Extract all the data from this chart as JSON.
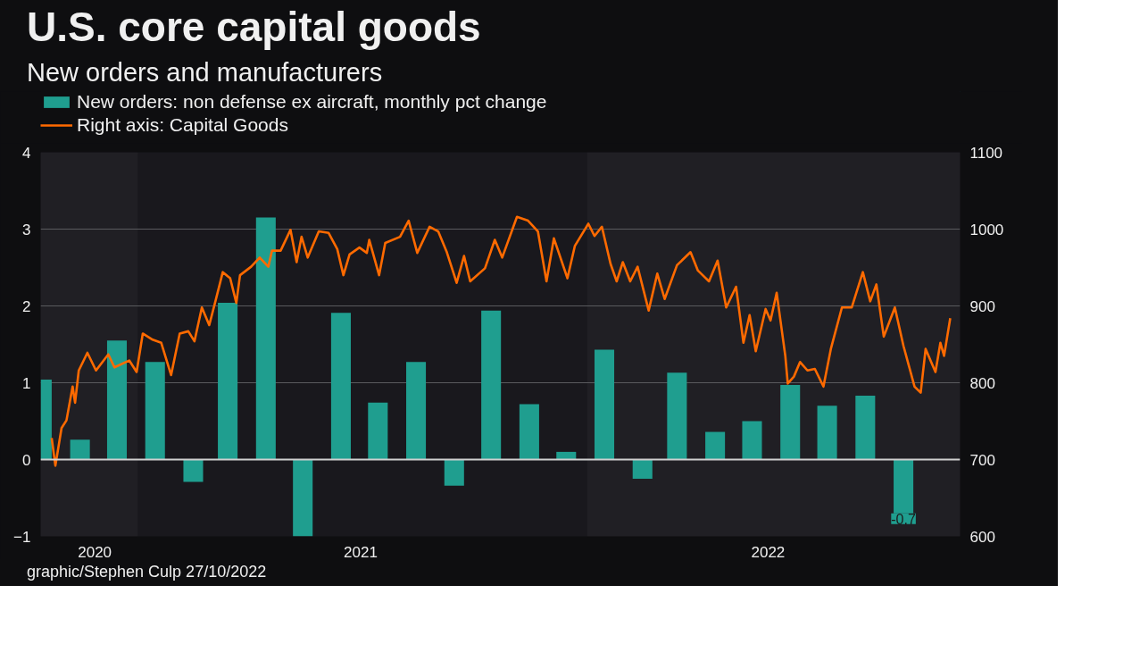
{
  "chart_data": {
    "type": "bar",
    "title": "U.S. core capital goods",
    "subtitle": "New orders and manufacturers",
    "x": [
      "2020-10-15",
      "2020-11-15",
      "2020-12-15",
      "2021-01-15",
      "2021-02-15",
      "2021-03-15",
      "2021-04-15",
      "2021-05-15",
      "2021-06-15",
      "2021-07-15",
      "2021-08-15",
      "2021-09-15",
      "2021-10-15",
      "2021-11-15",
      "2021-12-15",
      "2022-01-15",
      "2022-02-15",
      "2022-03-15",
      "2022-04-15",
      "2022-05-15",
      "2022-06-15",
      "2022-07-15",
      "2022-08-15",
      "2022-09-15"
    ],
    "series": [
      {
        "name": "New orders: non defense ex aircraft, monthly pct change",
        "color": "#1f9e8f",
        "values": [
          1.04,
          0.26,
          1.55,
          1.27,
          -0.29,
          2.04,
          3.15,
          -1.0,
          1.91,
          0.74,
          1.27,
          -0.34,
          1.94,
          0.72,
          0.1,
          1.43,
          -0.25,
          1.13,
          0.36,
          0.5,
          0.97,
          0.7,
          0.83,
          -0.7
        ],
        "value_labels": [
          null,
          null,
          null,
          null,
          null,
          null,
          null,
          null,
          null,
          null,
          null,
          null,
          null,
          null,
          null,
          null,
          null,
          null,
          null,
          null,
          null,
          null,
          null,
          "-0.7"
        ]
      },
      {
        "name": "Right axis: Capital Goods",
        "type": "line",
        "axis": "y2",
        "color": "#ff6a00",
        "x": [
          "2020-10-23",
          "2020-10-26",
          "2020-10-31",
          "2020-11-04",
          "2020-11-09",
          "2020-11-11",
          "2020-11-14",
          "2020-11-21",
          "2020-11-28",
          "2020-12-08",
          "2020-12-13",
          "2020-12-25",
          "2020-12-31",
          "2021-01-05",
          "2021-01-13",
          "2021-01-20",
          "2021-01-28",
          "2021-02-04",
          "2021-02-11",
          "2021-02-16",
          "2021-02-22",
          "2021-02-28",
          "2021-03-05",
          "2021-03-11",
          "2021-03-17",
          "2021-03-22",
          "2021-03-25",
          "2021-04-03",
          "2021-04-10",
          "2021-04-17",
          "2021-04-20",
          "2021-04-27",
          "2021-05-05",
          "2021-05-10",
          "2021-05-14",
          "2021-05-19",
          "2021-05-28",
          "2021-06-05",
          "2021-06-12",
          "2021-06-17",
          "2021-06-22",
          "2021-06-30",
          "2021-07-06",
          "2021-07-08",
          "2021-07-16",
          "2021-07-21",
          "2021-08-02",
          "2021-08-09",
          "2021-08-16",
          "2021-08-26",
          "2021-09-02",
          "2021-09-09",
          "2021-09-17",
          "2021-09-23",
          "2021-09-28",
          "2021-10-10",
          "2021-10-18",
          "2021-10-24",
          "2021-11-05",
          "2021-11-14",
          "2021-11-22",
          "2021-11-29",
          "2021-12-05",
          "2021-12-16",
          "2021-12-22",
          "2022-01-02",
          "2022-01-07",
          "2022-01-13",
          "2022-01-20",
          "2022-01-25",
          "2022-01-30",
          "2022-02-05",
          "2022-02-11",
          "2022-02-20",
          "2022-02-27",
          "2022-03-05",
          "2022-03-15",
          "2022-03-26",
          "2022-04-01",
          "2022-04-10",
          "2022-04-17",
          "2022-04-24",
          "2022-05-02",
          "2022-05-08",
          "2022-05-13",
          "2022-05-18",
          "2022-05-26",
          "2022-05-30",
          "2022-06-04",
          "2022-06-11",
          "2022-06-13",
          "2022-06-18",
          "2022-06-23",
          "2022-06-29",
          "2022-07-05",
          "2022-07-12",
          "2022-07-18",
          "2022-07-27",
          "2022-08-04",
          "2022-08-13",
          "2022-08-19",
          "2022-08-24",
          "2022-08-30",
          "2022-09-08",
          "2022-09-15",
          "2022-09-24",
          "2022-09-29",
          "2022-10-03",
          "2022-10-11",
          "2022-10-15",
          "2022-10-18",
          "2022-10-23"
        ],
        "values": [
          728,
          692,
          741,
          751,
          795,
          774,
          816,
          839,
          816,
          837,
          820,
          829,
          814,
          864,
          856,
          852,
          810,
          864,
          867,
          854,
          898,
          875,
          906,
          944,
          936,
          904,
          940,
          951,
          963,
          951,
          972,
          972,
          999,
          957,
          990,
          963,
          997,
          995,
          974,
          940,
          967,
          976,
          969,
          986,
          940,
          982,
          990,
          1011,
          969,
          1003,
          997,
          970,
          930,
          965,
          932,
          949,
          986,
          963,
          1016,
          1011,
          997,
          932,
          988,
          936,
          978,
          1007,
          991,
          1003,
          955,
          932,
          957,
          932,
          951,
          894,
          942,
          909,
          953,
          970,
          946,
          932,
          959,
          898,
          925,
          852,
          888,
          841,
          896,
          881,
          917,
          835,
          799,
          808,
          827,
          816,
          818,
          795,
          844,
          898,
          898,
          944,
          906,
          928,
          860,
          898,
          848,
          795,
          787,
          844,
          814,
          852,
          835,
          884
        ]
      }
    ],
    "xlim": [
      "2020-10-14",
      "2022-10-31"
    ],
    "xticks": [
      {
        "value": "2020-11-27",
        "label": "2020"
      },
      {
        "value": "2021-07-01",
        "label": "2021"
      },
      {
        "value": "2022-05-28",
        "label": "2022"
      }
    ],
    "ylim": [
      -1,
      4
    ],
    "yticks": [
      -1,
      0,
      1,
      2,
      3,
      4
    ],
    "y2lim": [
      600,
      1100
    ],
    "y2ticks": [
      600,
      700,
      800,
      900,
      1000,
      1100
    ],
    "grid": "y",
    "legend": "top left",
    "ref_lines": [
      {
        "axis": "y",
        "value": 0,
        "color": "#d0d0d0"
      }
    ],
    "bands": [
      {
        "axis": "x",
        "from": "2020-10-14",
        "to": "2021-01-01",
        "color": "#201f24"
      },
      {
        "axis": "x",
        "from": "2022-01-01",
        "to": "2022-10-31",
        "color": "#201f24"
      }
    ],
    "annotations": [
      "graphic/Stephen Culp 27/10/2022"
    ]
  }
}
